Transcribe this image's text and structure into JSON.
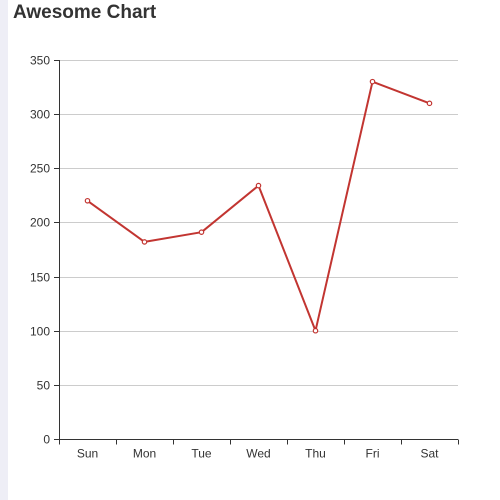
{
  "chart_data": {
    "type": "line",
    "title": "Awesome Chart",
    "categories": [
      "Sun",
      "Mon",
      "Tue",
      "Wed",
      "Thu",
      "Fri",
      "Sat"
    ],
    "series": [
      {
        "values": [
          220,
          182,
          191,
          234,
          100,
          330,
          310
        ]
      }
    ],
    "xlabel": "",
    "ylabel": "",
    "ylim": [
      0,
      350
    ],
    "yticks": [
      0,
      50,
      100,
      150,
      200,
      250,
      300,
      350
    ],
    "grid": true,
    "legend": "none",
    "line_color": "#c23531"
  }
}
